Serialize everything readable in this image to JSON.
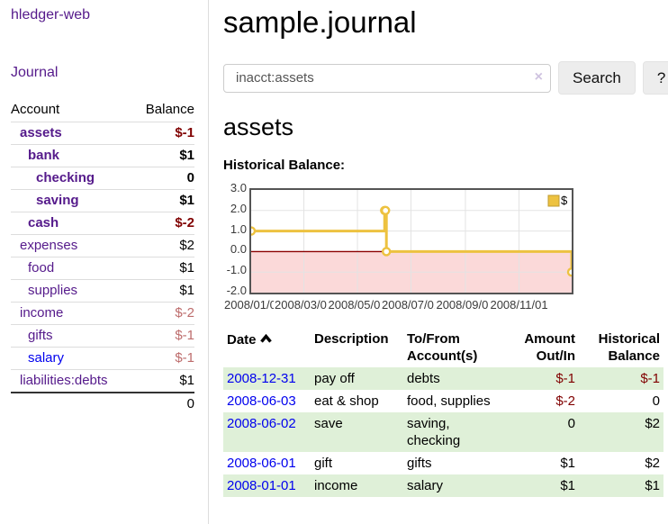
{
  "app": {
    "title": "hledger-web"
  },
  "sidebar": {
    "nav_journal": "Journal",
    "table": {
      "header_account": "Account",
      "header_balance": "Balance",
      "rows": [
        {
          "account": "assets",
          "balance": "$-1"
        },
        {
          "account": "bank",
          "balance": "$1"
        },
        {
          "account": "checking",
          "balance": "0"
        },
        {
          "account": "saving",
          "balance": "$1"
        },
        {
          "account": "cash",
          "balance": "$-2"
        },
        {
          "account": "expenses",
          "balance": "$2"
        },
        {
          "account": "food",
          "balance": "$1"
        },
        {
          "account": "supplies",
          "balance": "$1"
        },
        {
          "account": "income",
          "balance": "$-2"
        },
        {
          "account": "gifts",
          "balance": "$-1"
        },
        {
          "account": "salary",
          "balance": "$-1"
        },
        {
          "account": "liabilities:debts",
          "balance": "$1"
        }
      ],
      "total": "0"
    }
  },
  "header": {
    "title": "sample.journal"
  },
  "search": {
    "value": "inacct:assets",
    "clear_icon": "×",
    "search_button": "Search",
    "help_button": "?"
  },
  "account_page": {
    "title": "assets",
    "chart_label": "Historical Balance:"
  },
  "chart_data": {
    "type": "line",
    "title": "Historical Balance",
    "steps": true,
    "ylim": [
      -2,
      3
    ],
    "x_range_days": [
      0,
      365
    ],
    "grid": true,
    "legend_position": "top-right",
    "series": [
      {
        "name": "$",
        "color": "#edc240",
        "dates": [
          "2008-01-01",
          "2008-06-01",
          "2008-06-02",
          "2008-06-03",
          "2008-12-31"
        ],
        "points_day_value": [
          [
            0,
            1
          ],
          [
            152,
            2
          ],
          [
            153,
            2
          ],
          [
            154,
            0
          ],
          [
            365,
            -1
          ]
        ]
      }
    ],
    "yticks": [
      {
        "v": 3,
        "label": "3.0"
      },
      {
        "v": 2,
        "label": "2.0"
      },
      {
        "v": 1,
        "label": "1.0"
      },
      {
        "v": 0,
        "label": "0.0"
      },
      {
        "v": -1,
        "label": "-1.0"
      },
      {
        "v": -2,
        "label": "-2.0"
      }
    ],
    "xticks": [
      {
        "day": 0,
        "label": "2008/01/01"
      },
      {
        "day": 60,
        "label": "2008/03/01"
      },
      {
        "day": 121,
        "label": "2008/05/01"
      },
      {
        "day": 182,
        "label": "2008/07/01"
      },
      {
        "day": 244,
        "label": "2008/09/01"
      },
      {
        "day": 305,
        "label": "2008/11/01"
      }
    ],
    "colors": {
      "line": "#edc240",
      "marker_fill": "#ffffff",
      "negative_region": "#fbd9d9",
      "zero_line": "#8b0000",
      "gridline": "#e3e3e3",
      "border": "#545454"
    }
  },
  "register": {
    "headers": {
      "date": "Date",
      "description": "Description",
      "accounts_l1": "To/From",
      "accounts_l2": "Account(s)",
      "amount_l1": "Amount",
      "amount_l2": "Out/In",
      "balance_l1": "Historical",
      "balance_l2": "Balance"
    },
    "rows": [
      {
        "date": "2008-12-31",
        "description": "pay off",
        "accounts": "debts",
        "amount": "$-1",
        "balance": "$-1"
      },
      {
        "date": "2008-06-03",
        "description": "eat & shop",
        "accounts": "food, supplies",
        "amount": "$-2",
        "balance": "0"
      },
      {
        "date": "2008-06-02",
        "description": "save",
        "accounts": "saving, checking",
        "amount": "0",
        "balance": "$2"
      },
      {
        "date": "2008-06-01",
        "description": "gift",
        "accounts": "gifts",
        "amount": "$1",
        "balance": "$2"
      },
      {
        "date": "2008-01-01",
        "description": "income",
        "accounts": "salary",
        "amount": "$1",
        "balance": "$1"
      }
    ]
  }
}
